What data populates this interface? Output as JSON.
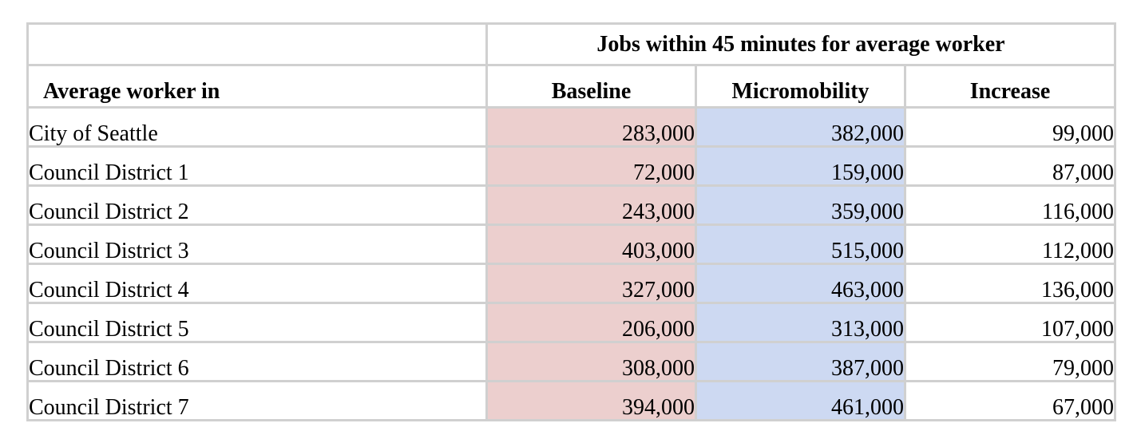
{
  "table": {
    "group_header": "Jobs within 45 minutes for average worker",
    "columns": {
      "row_label": "Average worker in",
      "baseline": "Baseline",
      "micromobility": "Micromobility",
      "increase": "Increase"
    },
    "colors": {
      "baseline_fill": "#eccfce",
      "micromobility_fill": "#cdd9f2",
      "grid": "#d0d0d0"
    },
    "rows": [
      {
        "label": "City of Seattle",
        "baseline": "283,000",
        "micromobility": "382,000",
        "increase": "99,000"
      },
      {
        "label": "Council District 1",
        "baseline": "72,000",
        "micromobility": "159,000",
        "increase": "87,000"
      },
      {
        "label": "Council District 2",
        "baseline": "243,000",
        "micromobility": "359,000",
        "increase": "116,000"
      },
      {
        "label": "Council District 3",
        "baseline": "403,000",
        "micromobility": "515,000",
        "increase": "112,000"
      },
      {
        "label": "Council District 4",
        "baseline": "327,000",
        "micromobility": "463,000",
        "increase": "136,000"
      },
      {
        "label": "Council District 5",
        "baseline": "206,000",
        "micromobility": "313,000",
        "increase": "107,000"
      },
      {
        "label": "Council District 6",
        "baseline": "308,000",
        "micromobility": "387,000",
        "increase": "79,000"
      },
      {
        "label": "Council District 7",
        "baseline": "394,000",
        "micromobility": "461,000",
        "increase": "67,000"
      }
    ]
  }
}
